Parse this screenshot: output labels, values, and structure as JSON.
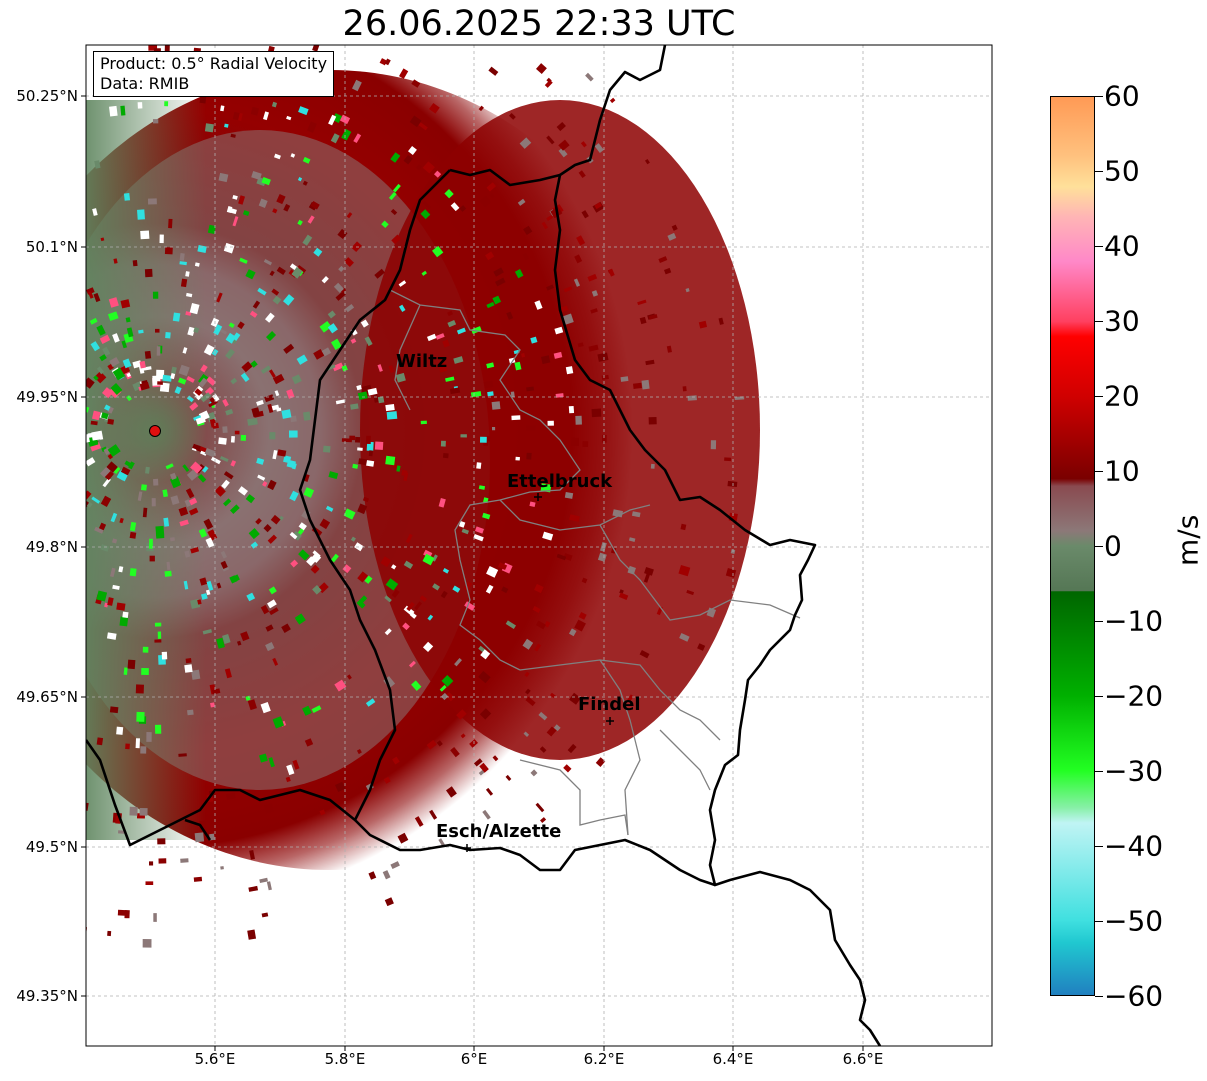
{
  "title": "26.06.2025 22:33 UTC",
  "info": {
    "product_line": "Product: 0.5° Radial Velocity",
    "data_line": "Data: RMIB"
  },
  "axes": {
    "x_ticks": [
      "5.6°E",
      "5.8°E",
      "6°E",
      "6.2°E",
      "6.4°E",
      "6.6°E"
    ],
    "y_ticks": [
      "50.25°N",
      "50.1°N",
      "49.95°N",
      "49.8°N",
      "49.65°N",
      "49.5°N",
      "49.35°N"
    ]
  },
  "cities": [
    {
      "name": "Wiltz"
    },
    {
      "name": "Ettelbruck"
    },
    {
      "name": "Findel"
    },
    {
      "name": "Esch/Alzette"
    }
  ],
  "colorbar": {
    "unit": "m/s",
    "ticks": [
      "60",
      "50",
      "40",
      "30",
      "20",
      "10",
      "0",
      "−10",
      "−20",
      "−30",
      "−40",
      "−50",
      "−60"
    ],
    "range": [
      -60,
      60
    ],
    "stops": [
      {
        "v": 60,
        "c": "#ff9a55"
      },
      {
        "v": 52,
        "c": "#ffc27f"
      },
      {
        "v": 48,
        "c": "#ffe09a"
      },
      {
        "v": 44,
        "c": "#ffb5b5"
      },
      {
        "v": 38,
        "c": "#ff88c8"
      },
      {
        "v": 30,
        "c": "#ff4060"
      },
      {
        "v": 28,
        "c": "#ff0000"
      },
      {
        "v": 20,
        "c": "#d00000"
      },
      {
        "v": 9,
        "c": "#7a0000"
      },
      {
        "v": 8,
        "c": "#8a4a50"
      },
      {
        "v": 2,
        "c": "#8c7878"
      },
      {
        "v": 0,
        "c": "#6a8a6a"
      },
      {
        "v": -6,
        "c": "#557755"
      },
      {
        "v": -6.1,
        "c": "#006600"
      },
      {
        "v": -20,
        "c": "#00b000"
      },
      {
        "v": -30,
        "c": "#22ff22"
      },
      {
        "v": -35,
        "c": "#88f0a8"
      },
      {
        "v": -37,
        "c": "#c0f4f4"
      },
      {
        "v": -50,
        "c": "#40e0e0"
      },
      {
        "v": -53,
        "c": "#20c8d0"
      },
      {
        "v": -60,
        "c": "#2080c0"
      }
    ]
  },
  "colors": {
    "border_country": "#000000",
    "border_canton": "#808080",
    "radar_site": "#e01010"
  }
}
